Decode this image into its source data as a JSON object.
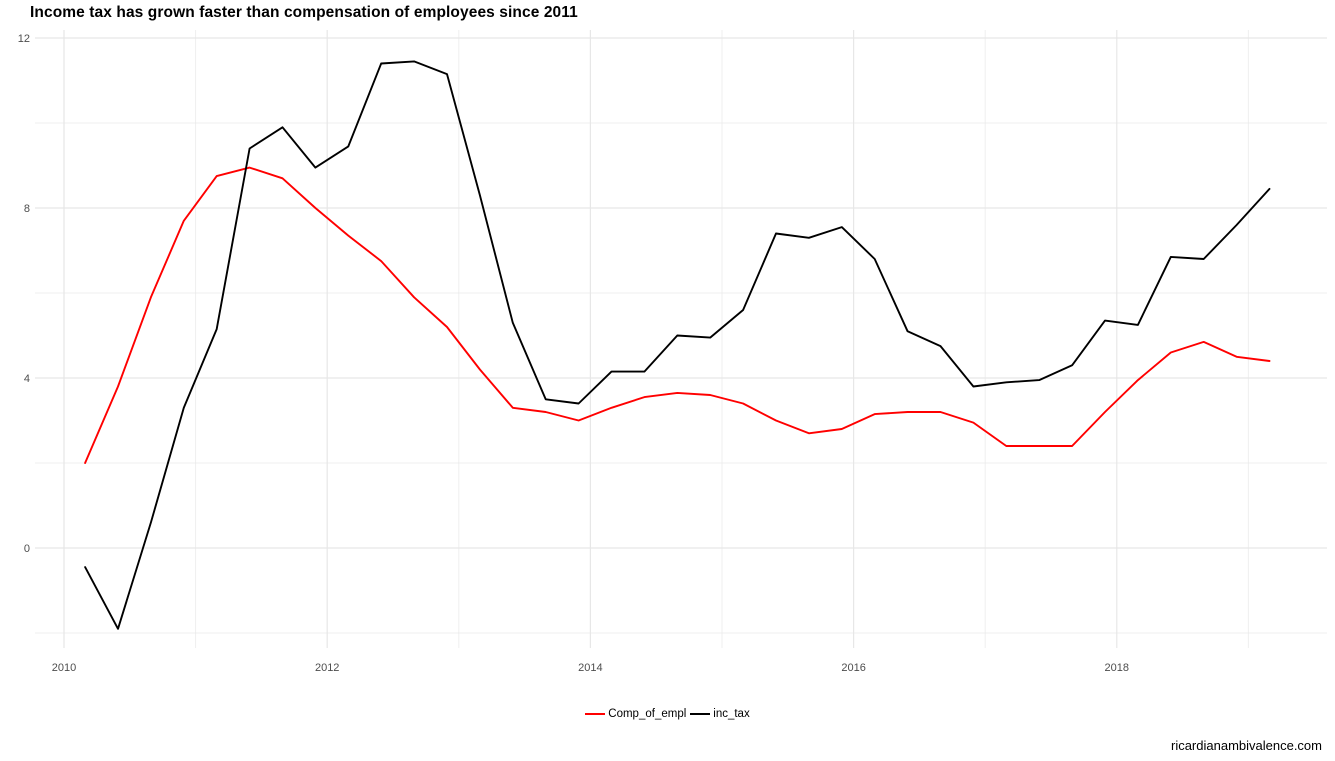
{
  "page": {
    "title": "Income tax has grown faster than compensation of employees since 2011",
    "watermark": "ricardianambivalence.com"
  },
  "chart_data": {
    "type": "line",
    "title": "Income tax has grown faster than compensation of employees since 2011",
    "xlabel": "",
    "ylabel": "",
    "grid": true,
    "legend_position": "bottom-center",
    "background": "#ffffff",
    "grid_color": "#e7e7e7",
    "axis_text_color": "#4d4d4d",
    "x_axis": {
      "tick_labels": [
        "2010",
        "2012",
        "2014",
        "2016",
        "2018"
      ],
      "tick_years": [
        2010,
        2012,
        2014,
        2016,
        2018
      ],
      "minor_years": [
        2011,
        2013,
        2015,
        2017,
        2019
      ],
      "range": [
        2009.78,
        2019.6
      ]
    },
    "y_axis": {
      "tick_labels": [
        "0",
        "4",
        "8",
        "12"
      ],
      "tick_values": [
        0,
        4,
        8,
        12
      ],
      "minor_values": [
        -2,
        2,
        6,
        10
      ],
      "range": [
        -2.35,
        12.2
      ]
    },
    "x_start": 2010.16,
    "x_step": 0.25,
    "quarters": [
      "2010Q1",
      "2010Q2",
      "2010Q3",
      "2010Q4",
      "2011Q1",
      "2011Q2",
      "2011Q3",
      "2011Q4",
      "2012Q1",
      "2012Q2",
      "2012Q3",
      "2012Q4",
      "2013Q1",
      "2013Q2",
      "2013Q3",
      "2013Q4",
      "2014Q1",
      "2014Q2",
      "2014Q3",
      "2014Q4",
      "2015Q1",
      "2015Q2",
      "2015Q3",
      "2015Q4",
      "2016Q1",
      "2016Q2",
      "2016Q3",
      "2016Q4",
      "2017Q1",
      "2017Q2",
      "2017Q3",
      "2017Q4",
      "2018Q1",
      "2018Q2",
      "2018Q3",
      "2018Q4",
      "2019Q1"
    ],
    "series": [
      {
        "name": "Comp_of_empl",
        "color": "#ff0000",
        "values": [
          2.0,
          3.8,
          5.9,
          7.7,
          8.75,
          8.95,
          8.7,
          8.0,
          7.35,
          6.75,
          5.9,
          5.2,
          4.2,
          3.3,
          3.2,
          3.0,
          3.3,
          3.55,
          3.65,
          3.6,
          3.4,
          3.0,
          2.7,
          2.8,
          3.15,
          3.2,
          3.2,
          2.95,
          2.4,
          2.4,
          2.4,
          3.2,
          3.95,
          4.6,
          4.85,
          4.5,
          4.4
        ]
      },
      {
        "name": "inc_tax",
        "color": "#000000",
        "values": [
          -0.45,
          -1.9,
          0.6,
          3.3,
          5.15,
          9.4,
          9.9,
          8.95,
          9.45,
          11.4,
          11.45,
          11.15,
          8.3,
          5.3,
          3.5,
          3.4,
          4.15,
          4.15,
          5.0,
          4.95,
          5.6,
          7.4,
          7.3,
          7.55,
          6.8,
          5.1,
          4.75,
          3.8,
          3.9,
          3.95,
          4.3,
          5.35,
          5.25,
          6.85,
          6.8,
          7.6,
          8.45
        ]
      }
    ]
  },
  "legend": {
    "items": [
      {
        "label": "Comp_of_empl",
        "color": "#ff0000"
      },
      {
        "label": "inc_tax",
        "color": "#000000"
      }
    ]
  }
}
